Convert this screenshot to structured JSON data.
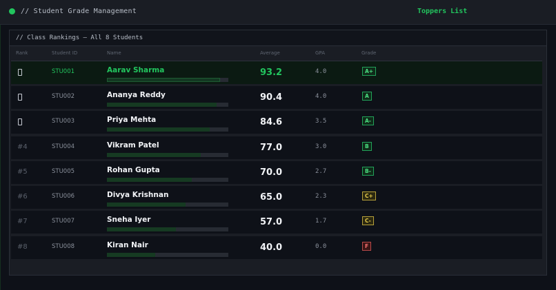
{
  "header": {
    "title": "// Student Grade Management",
    "nav_link": "Toppers List",
    "status_color": "#22c55e"
  },
  "panel": {
    "title": "// Class Rankings — All 8 Students",
    "columns": [
      "Rank",
      "Student ID",
      "Name",
      "Average",
      "GPA",
      "Grade"
    ]
  },
  "students": [
    {
      "rank": "medal-icon",
      "id": "STU001",
      "name": "Aarav Sharma",
      "average": "93.2",
      "gpa": "4.0",
      "grade": "A+",
      "grade_tone": "g"
    },
    {
      "rank": "medal-icon",
      "id": "STU002",
      "name": "Ananya Reddy",
      "average": "90.4",
      "gpa": "4.0",
      "grade": "A",
      "grade_tone": "g"
    },
    {
      "rank": "medal-icon",
      "id": "STU003",
      "name": "Priya Mehta",
      "average": "84.6",
      "gpa": "3.5",
      "grade": "A-",
      "grade_tone": "g"
    },
    {
      "rank": "#4",
      "id": "STU004",
      "name": "Vikram Patel",
      "average": "77.0",
      "gpa": "3.0",
      "grade": "B",
      "grade_tone": "g"
    },
    {
      "rank": "#5",
      "id": "STU005",
      "name": "Rohan Gupta",
      "average": "70.0",
      "gpa": "2.7",
      "grade": "B-",
      "grade_tone": "g"
    },
    {
      "rank": "#6",
      "id": "STU006",
      "name": "Divya Krishnan",
      "average": "65.0",
      "gpa": "2.3",
      "grade": "C+",
      "grade_tone": "y"
    },
    {
      "rank": "#7",
      "id": "STU007",
      "name": "Sneha Iyer",
      "average": "57.0",
      "gpa": "1.7",
      "grade": "C-",
      "grade_tone": "y"
    },
    {
      "rank": "#8",
      "id": "STU008",
      "name": "Kiran Nair",
      "average": "40.0",
      "gpa": "0.0",
      "grade": "F",
      "grade_tone": "r"
    }
  ]
}
